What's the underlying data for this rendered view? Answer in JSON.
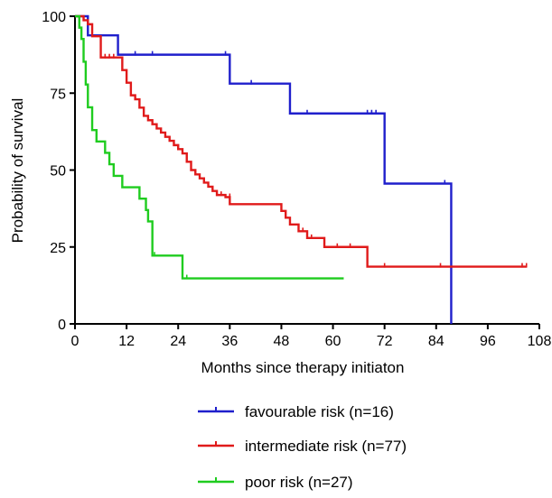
{
  "chart_data": {
    "type": "line",
    "step": true,
    "title": "",
    "xlabel": "Months since therapy initiaton",
    "ylabel": "Probability of survival",
    "xlim": [
      0,
      108
    ],
    "ylim": [
      0,
      100
    ],
    "xticks": [
      0,
      12,
      24,
      36,
      48,
      60,
      72,
      84,
      96,
      108
    ],
    "yticks": [
      0,
      25,
      50,
      75,
      100
    ],
    "grid": false,
    "legend_position": "bottom",
    "series": [
      {
        "name": "favourable risk (n=16)",
        "color": "#1f1fcc",
        "x": [
          0,
          3,
          10,
          36,
          50,
          72,
          87.5
        ],
        "y": [
          100,
          93.8,
          87.5,
          78.1,
          68.4,
          45.6,
          0
        ],
        "censored": [
          {
            "x": 14,
            "y": 87.5
          },
          {
            "x": 18,
            "y": 87.5
          },
          {
            "x": 35,
            "y": 87.5
          },
          {
            "x": 41,
            "y": 78.1
          },
          {
            "x": 54,
            "y": 68.4
          },
          {
            "x": 68,
            "y": 68.4
          },
          {
            "x": 69,
            "y": 68.4
          },
          {
            "x": 70,
            "y": 68.4
          },
          {
            "x": 86,
            "y": 45.6
          }
        ]
      },
      {
        "name": "intermediate risk (n=77)",
        "color": "#e01a1a",
        "x": [
          0,
          2,
          3,
          4,
          6,
          11,
          12,
          13,
          14,
          15,
          16,
          17,
          18,
          19,
          20,
          21,
          22,
          23,
          24,
          25,
          26,
          27,
          28,
          29,
          30,
          31,
          32,
          33,
          34,
          35,
          36,
          40,
          41,
          48,
          49,
          50,
          52,
          54,
          56,
          58,
          68
        ],
        "y": [
          100,
          98.7,
          97.4,
          93.5,
          86.6,
          82.5,
          78.4,
          74.3,
          73,
          70.3,
          67.6,
          66.2,
          64.9,
          63.5,
          62.2,
          60.8,
          59.5,
          58.1,
          56.8,
          55.4,
          52.7,
          50,
          48.6,
          47.3,
          45.9,
          44.6,
          43.2,
          41.9,
          41.9,
          41.2,
          38.9,
          38.9,
          38.9,
          36.7,
          34.5,
          32.3,
          30.1,
          27.9,
          27.9,
          25,
          18.6
        ],
        "censored": [
          {
            "x": 7,
            "y": 86.6
          },
          {
            "x": 8,
            "y": 86.6
          },
          {
            "x": 9,
            "y": 86.6
          },
          {
            "x": 23,
            "y": 58.1
          },
          {
            "x": 33,
            "y": 41.9
          },
          {
            "x": 34,
            "y": 41.9
          },
          {
            "x": 36,
            "y": 41.2
          },
          {
            "x": 53,
            "y": 30.1
          },
          {
            "x": 55,
            "y": 27.9
          },
          {
            "x": 61,
            "y": 25
          },
          {
            "x": 64,
            "y": 25
          },
          {
            "x": 72,
            "y": 18.6
          },
          {
            "x": 85,
            "y": 18.6
          },
          {
            "x": 104,
            "y": 18.6
          },
          {
            "x": 105,
            "y": 18.6
          }
        ]
      },
      {
        "name": "poor risk (n=27)",
        "color": "#1fcc1f",
        "x": [
          0,
          1,
          1.5,
          2,
          2.5,
          3,
          4,
          5,
          7,
          8,
          9,
          11,
          15,
          16.5,
          17,
          18,
          25
        ],
        "y": [
          100,
          96.3,
          92.6,
          85.2,
          77.8,
          70.4,
          63,
          59.3,
          55.6,
          51.9,
          48.1,
          44.4,
          40.7,
          37,
          33.3,
          22.2,
          14.8
        ],
        "censored": [
          {
            "x": 18.5,
            "y": 22.2
          },
          {
            "x": 26,
            "y": 14.8
          }
        ],
        "end_x": 62.5
      }
    ]
  }
}
